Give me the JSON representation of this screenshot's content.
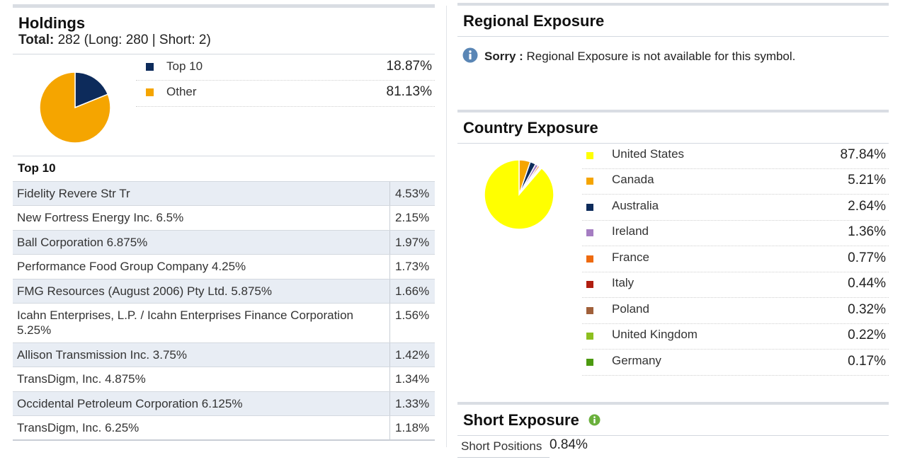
{
  "holdings": {
    "title": "Holdings",
    "total_label": "Total:",
    "total_value": "282 (Long: 280 | Short: 2)",
    "legend": [
      {
        "label": "Top 10",
        "value": "18.87%",
        "color": "#0d2b5b"
      },
      {
        "label": "Other",
        "value": "81.13%",
        "color": "#f5a500"
      }
    ],
    "pie": [
      {
        "name": "Top 10",
        "value": 18.87,
        "color": "#0d2b5b"
      },
      {
        "name": "Other",
        "value": 81.13,
        "color": "#f5a500"
      }
    ],
    "top10_title": "Top 10",
    "top10": [
      {
        "name": "Fidelity Revere Str Tr",
        "value": "4.53%"
      },
      {
        "name": "New Fortress Energy Inc. 6.5%",
        "value": "2.15%"
      },
      {
        "name": "Ball Corporation 6.875%",
        "value": "1.97%"
      },
      {
        "name": "Performance Food Group Company 4.25%",
        "value": "1.73%"
      },
      {
        "name": "FMG Resources (August 2006) Pty Ltd. 5.875%",
        "value": "1.66%"
      },
      {
        "name": "Icahn Enterprises, L.P. / Icahn Enterprises Finance Corporation 5.25%",
        "value": "1.56%"
      },
      {
        "name": "Allison Transmission Inc. 3.75%",
        "value": "1.42%"
      },
      {
        "name": "TransDigm, Inc. 4.875%",
        "value": "1.34%"
      },
      {
        "name": "Occidental Petroleum Corporation 6.125%",
        "value": "1.33%"
      },
      {
        "name": "TransDigm, Inc. 6.25%",
        "value": "1.18%"
      }
    ]
  },
  "regional": {
    "title": "Regional Exposure",
    "sorry_label": "Sorry :",
    "sorry_text": "Regional Exposure is not available for this symbol.",
    "icon": "info-icon"
  },
  "country": {
    "title": "Country Exposure",
    "items": [
      {
        "label": "United States",
        "value": "87.84%",
        "pct": 87.84,
        "color": "#ffff00"
      },
      {
        "label": "Canada",
        "value": "5.21%",
        "pct": 5.21,
        "color": "#f5a500"
      },
      {
        "label": "Australia",
        "value": "2.64%",
        "pct": 2.64,
        "color": "#0d2b5b"
      },
      {
        "label": "Ireland",
        "value": "1.36%",
        "pct": 1.36,
        "color": "#a57dc2"
      },
      {
        "label": "France",
        "value": "0.77%",
        "pct": 0.77,
        "color": "#ee6a0f"
      },
      {
        "label": "Italy",
        "value": "0.44%",
        "pct": 0.44,
        "color": "#b01e10"
      },
      {
        "label": "Poland",
        "value": "0.32%",
        "pct": 0.32,
        "color": "#a0603a"
      },
      {
        "label": "United Kingdom",
        "value": "0.22%",
        "pct": 0.22,
        "color": "#8dbf1f"
      },
      {
        "label": "Germany",
        "value": "0.17%",
        "pct": 0.17,
        "color": "#4c9a10"
      }
    ]
  },
  "short": {
    "title": "Short Exposure",
    "icon": "info-icon",
    "positions_label": "Short Positions",
    "positions_value": "0.84%"
  }
}
